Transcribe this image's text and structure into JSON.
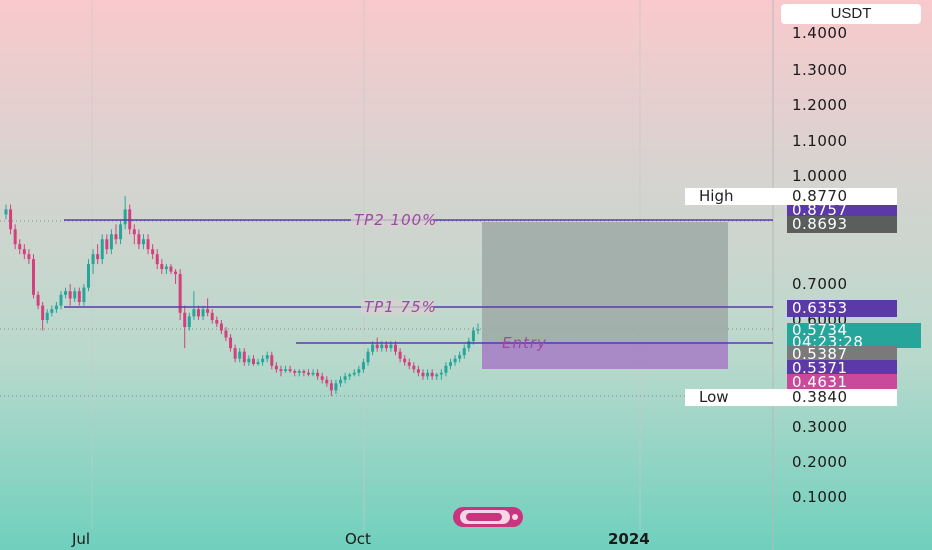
{
  "unit": "USDT",
  "colors": {
    "up": "#26a69a",
    "down": "#d4407c",
    "tp_line": "#5b3aa8",
    "target_zone": "#9fa9a6",
    "stop_zone": "#a97fc7"
  },
  "chart_data": {
    "type": "candlestick",
    "yaxis": {
      "ticks": [
        "1.4000",
        "1.3000",
        "1.2000",
        "1.1000",
        "1.0000",
        "0.7000",
        "0.6000",
        "0.3000",
        "0.2000",
        "0.1000"
      ]
    },
    "xaxis": {
      "ticks": [
        "Jul",
        "Oct",
        "2024"
      ]
    },
    "lines": [
      {
        "label": "TP2 100%",
        "value": 0.8757
      },
      {
        "label": "TP1 75%",
        "value": 0.6353
      },
      {
        "label": "Entry",
        "value": 0.5387
      }
    ],
    "price_tags": [
      {
        "value": "0.8757",
        "color": "#5b3aa8"
      },
      {
        "value": "0.8693",
        "color": "#5a5f5e"
      },
      {
        "value": "0.6353",
        "color": "#5b3aa8"
      },
      {
        "value": "0.5734",
        "sub": "04:23:28",
        "color": "#26a69a"
      },
      {
        "value": "0.5387",
        "color": "#7a7a7a"
      },
      {
        "value": "0.5371",
        "color": "#5b3aa8"
      },
      {
        "value": "0.4631",
        "color": "#c94a9a"
      }
    ],
    "high": {
      "label": "High",
      "value": "0.8770"
    },
    "low": {
      "label": "Low",
      "value": "0.3840"
    },
    "candles": [
      [
        0.84,
        0.86,
        0.83,
        0.85
      ],
      [
        0.85,
        0.86,
        0.8,
        0.81
      ],
      [
        0.81,
        0.82,
        0.77,
        0.78
      ],
      [
        0.78,
        0.79,
        0.76,
        0.77
      ],
      [
        0.77,
        0.78,
        0.75,
        0.76
      ],
      [
        0.76,
        0.77,
        0.74,
        0.75
      ],
      [
        0.75,
        0.76,
        0.66,
        0.67
      ],
      [
        0.67,
        0.68,
        0.63,
        0.64
      ],
      [
        0.64,
        0.65,
        0.57,
        0.6
      ],
      [
        0.6,
        0.63,
        0.59,
        0.62
      ],
      [
        0.62,
        0.64,
        0.61,
        0.63
      ],
      [
        0.63,
        0.65,
        0.62,
        0.64
      ],
      [
        0.64,
        0.68,
        0.63,
        0.67
      ],
      [
        0.67,
        0.69,
        0.66,
        0.68
      ],
      [
        0.68,
        0.7,
        0.64,
        0.66
      ],
      [
        0.66,
        0.69,
        0.65,
        0.68
      ],
      [
        0.68,
        0.69,
        0.64,
        0.65
      ],
      [
        0.65,
        0.7,
        0.64,
        0.69
      ],
      [
        0.69,
        0.75,
        0.68,
        0.74
      ],
      [
        0.74,
        0.77,
        0.72,
        0.76
      ],
      [
        0.76,
        0.78,
        0.74,
        0.75
      ],
      [
        0.75,
        0.8,
        0.74,
        0.79
      ],
      [
        0.79,
        0.8,
        0.76,
        0.77
      ],
      [
        0.77,
        0.81,
        0.76,
        0.8
      ],
      [
        0.8,
        0.82,
        0.78,
        0.79
      ],
      [
        0.79,
        0.83,
        0.78,
        0.82
      ],
      [
        0.82,
        0.877,
        0.81,
        0.85
      ],
      [
        0.85,
        0.86,
        0.8,
        0.81
      ],
      [
        0.81,
        0.82,
        0.78,
        0.8
      ],
      [
        0.8,
        0.81,
        0.77,
        0.78
      ],
      [
        0.78,
        0.8,
        0.77,
        0.79
      ],
      [
        0.79,
        0.8,
        0.76,
        0.77
      ],
      [
        0.77,
        0.78,
        0.75,
        0.76
      ],
      [
        0.76,
        0.77,
        0.73,
        0.74
      ],
      [
        0.74,
        0.75,
        0.72,
        0.73
      ],
      [
        0.73,
        0.74,
        0.72,
        0.735
      ],
      [
        0.735,
        0.74,
        0.72,
        0.725
      ],
      [
        0.725,
        0.73,
        0.7,
        0.72
      ],
      [
        0.72,
        0.73,
        0.6,
        0.62
      ],
      [
        0.62,
        0.64,
        0.52,
        0.58
      ],
      [
        0.58,
        0.62,
        0.57,
        0.61
      ],
      [
        0.61,
        0.68,
        0.6,
        0.63
      ],
      [
        0.63,
        0.64,
        0.6,
        0.61
      ],
      [
        0.61,
        0.64,
        0.6,
        0.63
      ],
      [
        0.63,
        0.66,
        0.61,
        0.62
      ],
      [
        0.62,
        0.63,
        0.59,
        0.6
      ],
      [
        0.6,
        0.61,
        0.58,
        0.59
      ],
      [
        0.59,
        0.6,
        0.56,
        0.57
      ],
      [
        0.57,
        0.58,
        0.54,
        0.55
      ],
      [
        0.55,
        0.56,
        0.51,
        0.52
      ],
      [
        0.52,
        0.53,
        0.48,
        0.49
      ],
      [
        0.49,
        0.52,
        0.48,
        0.51
      ],
      [
        0.51,
        0.52,
        0.47,
        0.48
      ],
      [
        0.48,
        0.5,
        0.47,
        0.49
      ],
      [
        0.49,
        0.5,
        0.47,
        0.475
      ],
      [
        0.475,
        0.49,
        0.47,
        0.48
      ],
      [
        0.48,
        0.5,
        0.47,
        0.49
      ],
      [
        0.49,
        0.51,
        0.48,
        0.5
      ],
      [
        0.5,
        0.51,
        0.46,
        0.47
      ],
      [
        0.47,
        0.48,
        0.45,
        0.46
      ],
      [
        0.46,
        0.47,
        0.44,
        0.455
      ],
      [
        0.455,
        0.47,
        0.45,
        0.46
      ],
      [
        0.46,
        0.47,
        0.45,
        0.455
      ],
      [
        0.455,
        0.46,
        0.44,
        0.45
      ],
      [
        0.45,
        0.46,
        0.44,
        0.455
      ],
      [
        0.455,
        0.46,
        0.44,
        0.45
      ],
      [
        0.45,
        0.46,
        0.44,
        0.445
      ],
      [
        0.445,
        0.46,
        0.44,
        0.45
      ],
      [
        0.45,
        0.46,
        0.43,
        0.44
      ],
      [
        0.44,
        0.45,
        0.42,
        0.43
      ],
      [
        0.43,
        0.44,
        0.41,
        0.42
      ],
      [
        0.42,
        0.43,
        0.384,
        0.4
      ],
      [
        0.4,
        0.43,
        0.39,
        0.42
      ],
      [
        0.42,
        0.44,
        0.41,
        0.43
      ],
      [
        0.43,
        0.45,
        0.42,
        0.44
      ],
      [
        0.44,
        0.45,
        0.43,
        0.445
      ],
      [
        0.445,
        0.46,
        0.44,
        0.45
      ],
      [
        0.45,
        0.47,
        0.44,
        0.46
      ],
      [
        0.46,
        0.49,
        0.45,
        0.48
      ],
      [
        0.48,
        0.52,
        0.47,
        0.51
      ],
      [
        0.51,
        0.54,
        0.5,
        0.53
      ],
      [
        0.53,
        0.55,
        0.51,
        0.52
      ],
      [
        0.52,
        0.54,
        0.51,
        0.53
      ],
      [
        0.53,
        0.54,
        0.51,
        0.52
      ],
      [
        0.52,
        0.54,
        0.51,
        0.53
      ],
      [
        0.53,
        0.54,
        0.5,
        0.51
      ],
      [
        0.51,
        0.52,
        0.48,
        0.49
      ],
      [
        0.49,
        0.5,
        0.47,
        0.48
      ],
      [
        0.48,
        0.49,
        0.46,
        0.47
      ],
      [
        0.47,
        0.48,
        0.45,
        0.46
      ],
      [
        0.46,
        0.47,
        0.44,
        0.45
      ],
      [
        0.45,
        0.46,
        0.43,
        0.44
      ],
      [
        0.44,
        0.46,
        0.43,
        0.45
      ],
      [
        0.45,
        0.46,
        0.43,
        0.44
      ],
      [
        0.44,
        0.45,
        0.43,
        0.445
      ],
      [
        0.445,
        0.46,
        0.43,
        0.45
      ],
      [
        0.45,
        0.48,
        0.44,
        0.47
      ],
      [
        0.47,
        0.49,
        0.46,
        0.48
      ],
      [
        0.48,
        0.5,
        0.47,
        0.49
      ],
      [
        0.49,
        0.51,
        0.48,
        0.5
      ],
      [
        0.5,
        0.53,
        0.49,
        0.52
      ],
      [
        0.52,
        0.55,
        0.51,
        0.54
      ],
      [
        0.54,
        0.58,
        0.53,
        0.57
      ],
      [
        0.57,
        0.59,
        0.56,
        0.5734
      ]
    ]
  }
}
